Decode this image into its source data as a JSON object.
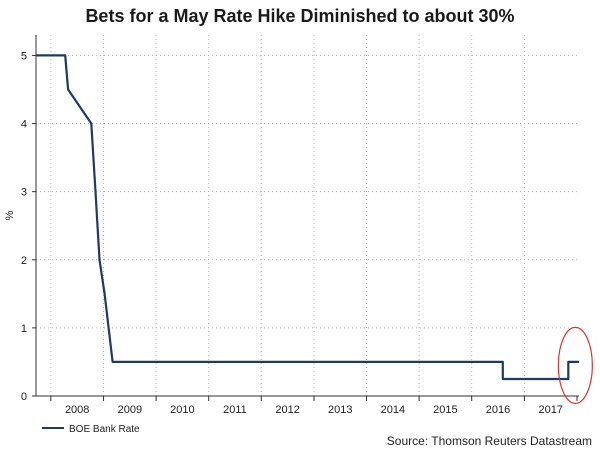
{
  "chart_data": {
    "type": "line",
    "title": "Bets for a May Rate Hike Diminished to about 30%",
    "xlabel": "",
    "ylabel": "%",
    "ylim": [
      0,
      5.3
    ],
    "yticks": [
      0,
      1,
      2,
      3,
      4,
      5
    ],
    "xlim": [
      "2007-09-20",
      "2018-01-15"
    ],
    "year_labels": [
      "2008",
      "2009",
      "2010",
      "2011",
      "2012",
      "2013",
      "2014",
      "2015",
      "2016",
      "2017"
    ],
    "grid": true,
    "legend_position": "bottom-left",
    "source": "Source: Thomson Reuters Datastream",
    "annotation": {
      "type": "ellipse",
      "color": "#e03030",
      "target_date": "2017-11-02"
    },
    "series": [
      {
        "name": "BOE Bank Rate",
        "color": "#1f3a64",
        "points": [
          [
            "2007-09-20",
            5.0
          ],
          [
            "2008-04-10",
            5.0
          ],
          [
            "2008-04-30",
            4.5
          ],
          [
            "2008-10-08",
            4.0
          ],
          [
            "2008-11-06",
            3.0
          ],
          [
            "2008-12-04",
            2.0
          ],
          [
            "2009-01-08",
            1.5
          ],
          [
            "2009-02-05",
            1.0
          ],
          [
            "2009-03-05",
            0.5
          ],
          [
            "2016-08-04",
            0.5
          ],
          [
            "2016-08-04",
            0.25
          ],
          [
            "2017-11-02",
            0.25
          ],
          [
            "2017-11-02",
            0.5
          ],
          [
            "2018-01-15",
            0.5
          ]
        ]
      }
    ]
  }
}
